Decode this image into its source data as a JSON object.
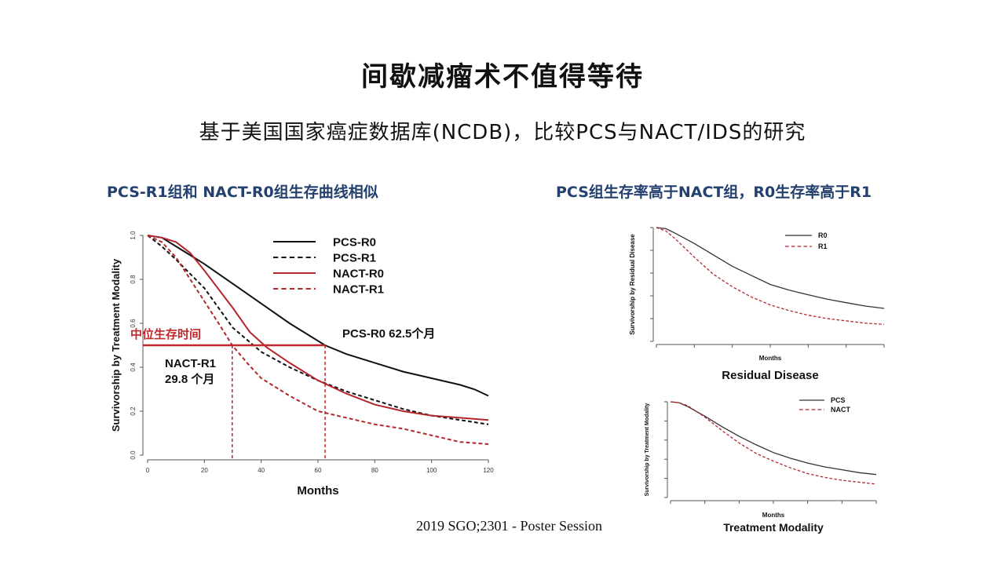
{
  "slide": {
    "title": "间歇减瘤术不值得等待",
    "subtitle": "基于美国国家癌症数据库(NCDB)，比较PCS与NACT/IDS的研究",
    "left_heading": "PCS-R1组和 NACT-R0组生存曲线相似",
    "right_heading": "PCS组生存率高于NACT组，R0生存率高于R1",
    "source": "2019 SGO;2301 - Poster Session"
  },
  "chart_data": [
    {
      "type": "line",
      "xlabel": "Months",
      "ylabel": "Survivorship by Treatment Modality",
      "xlim": [
        0,
        120
      ],
      "ylim": [
        0,
        1.0
      ],
      "xticks": [
        "0",
        "20",
        "40",
        "60",
        "80",
        "100",
        "120"
      ],
      "yticks": [
        "0.0",
        "0.2",
        "0.4",
        "0.6",
        "0.8",
        "1.0"
      ],
      "legend_position": "top-right",
      "series": [
        {
          "name": "PCS-R0",
          "color": "#111111",
          "dash": "solid",
          "x": [
            0,
            5,
            10,
            20,
            30,
            40,
            50,
            62.5,
            70,
            80,
            90,
            100,
            110,
            115,
            120
          ],
          "y": [
            1.0,
            0.99,
            0.95,
            0.87,
            0.78,
            0.69,
            0.6,
            0.5,
            0.46,
            0.42,
            0.38,
            0.35,
            0.32,
            0.3,
            0.27
          ]
        },
        {
          "name": "PCS-R1",
          "color": "#111111",
          "dash": "dashed",
          "x": [
            0,
            5,
            10,
            20,
            30,
            40,
            50,
            60,
            70,
            80,
            90,
            100,
            110,
            120
          ],
          "y": [
            1.0,
            0.95,
            0.89,
            0.76,
            0.58,
            0.47,
            0.4,
            0.34,
            0.29,
            0.25,
            0.21,
            0.18,
            0.16,
            0.14
          ]
        },
        {
          "name": "NACT-R0",
          "color": "#b3262b",
          "dash": "solid",
          "x": [
            0,
            5,
            10,
            15,
            20,
            30,
            36,
            42,
            50,
            60,
            70,
            80,
            90,
            100,
            110,
            120
          ],
          "y": [
            1.0,
            0.99,
            0.97,
            0.92,
            0.84,
            0.67,
            0.56,
            0.49,
            0.42,
            0.34,
            0.28,
            0.23,
            0.2,
            0.18,
            0.17,
            0.16
          ]
        },
        {
          "name": "NACT-R1",
          "color": "#b3262b",
          "dash": "dashed",
          "x": [
            0,
            5,
            10,
            15,
            20,
            25,
            29.8,
            35,
            40,
            50,
            60,
            70,
            80,
            90,
            100,
            110,
            120
          ],
          "y": [
            1.0,
            0.97,
            0.9,
            0.8,
            0.7,
            0.6,
            0.5,
            0.42,
            0.35,
            0.27,
            0.2,
            0.17,
            0.14,
            0.12,
            0.09,
            0.06,
            0.05
          ]
        }
      ],
      "annotations": {
        "median_label": "中位生存时间",
        "median_y": 0.5,
        "pcs_r0_label": "PCS-R0  62.5个月",
        "pcs_r0_median_x": 62.5,
        "nact_r1_label_line1": "NACT-R1",
        "nact_r1_label_line2": "29.8 个月",
        "nact_r1_median_x": 29.8,
        "annotation_color": "#c0282d"
      }
    },
    {
      "type": "line",
      "title": "Residual Disease",
      "xlabel": "Months",
      "ylabel": "Survivorship by Residual Disease",
      "xlim": [
        0,
        120
      ],
      "ylim": [
        0,
        1.0
      ],
      "legend_position": "top-right",
      "series": [
        {
          "name": "R0",
          "color": "#333333",
          "dash": "solid",
          "x": [
            0,
            5,
            10,
            20,
            30,
            40,
            50,
            60,
            70,
            80,
            90,
            100,
            110,
            120
          ],
          "y": [
            1.0,
            0.99,
            0.95,
            0.86,
            0.76,
            0.66,
            0.58,
            0.5,
            0.45,
            0.41,
            0.37,
            0.34,
            0.31,
            0.29
          ]
        },
        {
          "name": "R1",
          "color": "#b3262b",
          "dash": "dashed",
          "x": [
            0,
            5,
            10,
            20,
            30,
            40,
            50,
            60,
            70,
            80,
            90,
            100,
            110,
            120
          ],
          "y": [
            1.0,
            0.97,
            0.9,
            0.74,
            0.59,
            0.48,
            0.39,
            0.32,
            0.27,
            0.23,
            0.2,
            0.18,
            0.16,
            0.15
          ]
        }
      ]
    },
    {
      "type": "line",
      "title": "Treatment Modality",
      "xlabel": "Months",
      "ylabel": "Survivorship by Treatment Modality",
      "xlim": [
        0,
        120
      ],
      "ylim": [
        0,
        1.0
      ],
      "legend_position": "top-right",
      "series": [
        {
          "name": "PCS",
          "color": "#333333",
          "dash": "solid",
          "x": [
            0,
            5,
            10,
            20,
            30,
            40,
            50,
            60,
            70,
            80,
            90,
            100,
            110,
            120
          ],
          "y": [
            1.0,
            0.99,
            0.95,
            0.85,
            0.74,
            0.64,
            0.55,
            0.47,
            0.41,
            0.36,
            0.32,
            0.29,
            0.26,
            0.24
          ]
        },
        {
          "name": "NACT",
          "color": "#b3262b",
          "dash": "dashed",
          "x": [
            0,
            5,
            10,
            20,
            30,
            40,
            50,
            60,
            70,
            80,
            90,
            100,
            110,
            120
          ],
          "y": [
            1.0,
            0.99,
            0.96,
            0.84,
            0.7,
            0.57,
            0.46,
            0.38,
            0.31,
            0.25,
            0.21,
            0.18,
            0.16,
            0.14
          ]
        }
      ]
    }
  ]
}
